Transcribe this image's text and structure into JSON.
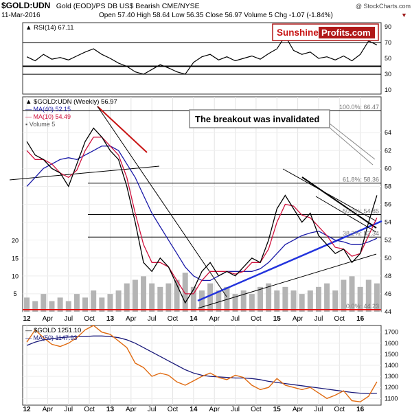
{
  "header": {
    "symbol": "$GOLD:UDN",
    "description": "Gold (EOD)/PS DB US$ Bearish  CME/NYSE",
    "watermark": "@ StockCharts.com",
    "date": "11-Mar-2016",
    "quote_line": "Open 57.40   High 58.64   Low 56.35   Close 56.97   Volume 5   Chg -1.07 (-1.84%)",
    "change_marker": "▼"
  },
  "branding": {
    "part1": "Sunshine",
    "part2": "Profits.com"
  },
  "colors": {
    "price": "#000000",
    "ma40": "#1a1aa8",
    "ma10": "#d0103c",
    "volume": "#b4b4b4",
    "gold": "#e06a10",
    "ma50": "#1a1a7a",
    "support": "#2233dd",
    "resistance_short": "#c81414"
  },
  "annotation": {
    "text": "The breakout was invalidated"
  },
  "chart_data": [
    {
      "type": "line",
      "title": "RSI(14) 67.11",
      "legend_label": "RSI(14) 67.11",
      "ylim": [
        5,
        95
      ],
      "ticks": [
        "90",
        "70",
        "50",
        "30",
        "10"
      ],
      "levels": [
        70,
        40,
        30
      ],
      "x": [
        2012.0,
        2012.1,
        2012.2,
        2012.3,
        2012.4,
        2012.5,
        2012.6,
        2012.7,
        2012.8,
        2012.9,
        2013.0,
        2013.1,
        2013.2,
        2013.3,
        2013.4,
        2013.5,
        2013.6,
        2013.7,
        2013.8,
        2013.9,
        2014.0,
        2014.1,
        2014.2,
        2014.3,
        2014.4,
        2014.5,
        2014.6,
        2014.7,
        2014.8,
        2014.9,
        2015.0,
        2015.1,
        2015.2,
        2015.3,
        2015.4,
        2015.5,
        2015.6,
        2015.7,
        2015.8,
        2015.9,
        2016.0,
        2016.1,
        2016.2
      ],
      "values": [
        52,
        47,
        55,
        49,
        51,
        48,
        53,
        58,
        62,
        55,
        50,
        44,
        40,
        33,
        30,
        36,
        42,
        38,
        33,
        30,
        45,
        52,
        55,
        48,
        52,
        47,
        50,
        53,
        49,
        56,
        62,
        78,
        60,
        55,
        58,
        50,
        52,
        48,
        53,
        47,
        55,
        72,
        67
      ]
    },
    {
      "type": "line",
      "title": "$GOLD:UDN (Weekly) 56.97",
      "legend": [
        "$GOLD:UDN (Weekly) 56.97",
        "MA(40) 52.15",
        "MA(10) 54.49",
        "Volume 5"
      ],
      "ylim": [
        44,
        68
      ],
      "y_ticks": [
        "64",
        "62",
        "60",
        "58",
        "56",
        "54",
        "52",
        "50",
        "48",
        "46",
        "44"
      ],
      "volume_ticks": [
        "20",
        "15",
        "10",
        "5"
      ],
      "x_ticks": [
        "12",
        "Apr",
        "Jul",
        "Oct",
        "13",
        "Apr",
        "Jul",
        "Oct",
        "14",
        "Apr",
        "Jul",
        "Oct",
        "15",
        "Apr",
        "Jul",
        "Oct",
        "16"
      ],
      "x": [
        2012.0,
        2012.1,
        2012.2,
        2012.3,
        2012.4,
        2012.5,
        2012.6,
        2012.7,
        2012.8,
        2012.9,
        2013.0,
        2013.1,
        2013.2,
        2013.3,
        2013.4,
        2013.5,
        2013.6,
        2013.7,
        2013.8,
        2013.9,
        2014.0,
        2014.1,
        2014.2,
        2014.3,
        2014.4,
        2014.5,
        2014.6,
        2014.7,
        2014.8,
        2014.9,
        2015.0,
        2015.1,
        2015.2,
        2015.3,
        2015.4,
        2015.5,
        2015.6,
        2015.7,
        2015.8,
        2015.9,
        2016.0,
        2016.1,
        2016.2
      ],
      "series": [
        {
          "name": "$GOLD:UDN (Weekly) 56.97",
          "values": [
            63.0,
            61.5,
            61.0,
            60.0,
            59.5,
            58.0,
            60.5,
            63.0,
            64.5,
            63.5,
            62.0,
            61.0,
            58.0,
            54.0,
            49.5,
            48.5,
            50.0,
            49.0,
            47.0,
            45.0,
            46.5,
            48.5,
            49.5,
            48.0,
            48.5,
            48.0,
            49.0,
            50.0,
            49.5,
            52.0,
            55.5,
            57.0,
            55.5,
            54.0,
            55.0,
            52.5,
            51.5,
            50.5,
            51.0,
            49.5,
            50.5,
            54.0,
            57.0
          ]
        },
        {
          "name": "MA(40) 52.15",
          "values": [
            58.0,
            59.0,
            60.0,
            60.5,
            61.0,
            61.2,
            61.0,
            61.5,
            62.0,
            62.5,
            62.5,
            62.0,
            60.5,
            59.0,
            57.0,
            55.0,
            53.5,
            52.0,
            50.5,
            49.0,
            48.0,
            47.5,
            47.5,
            48.0,
            48.5,
            48.5,
            48.5,
            48.5,
            48.8,
            49.5,
            50.5,
            51.5,
            52.0,
            52.5,
            52.8,
            53.0,
            52.5,
            52.0,
            51.8,
            51.5,
            51.5,
            51.8,
            52.2
          ]
        },
        {
          "name": "MA(10) 54.49",
          "values": [
            62.0,
            61.0,
            61.0,
            60.5,
            59.5,
            59.0,
            59.8,
            62.0,
            63.5,
            63.5,
            62.5,
            61.5,
            59.0,
            55.0,
            51.5,
            49.5,
            49.5,
            49.0,
            47.5,
            46.0,
            46.0,
            47.5,
            48.5,
            48.5,
            48.5,
            48.2,
            48.5,
            49.5,
            49.5,
            51.0,
            54.0,
            56.0,
            55.8,
            54.8,
            54.5,
            53.5,
            52.5,
            51.2,
            51.0,
            50.2,
            50.5,
            52.5,
            54.5
          ]
        }
      ],
      "volume": [
        4,
        3,
        5,
        3,
        4,
        3,
        5,
        4,
        6,
        4,
        5,
        6,
        8,
        9,
        10,
        8,
        7,
        8,
        9,
        11,
        7,
        6,
        8,
        6,
        7,
        5,
        6,
        5,
        7,
        8,
        6,
        7,
        6,
        5,
        6,
        7,
        8,
        6,
        9,
        10,
        7,
        9,
        8
      ],
      "fib_labels": [
        {
          "pct": "100.0%",
          "value": "66.47",
          "level": 66.47
        },
        {
          "pct": "61.8%",
          "value": "58.36",
          "level": 58.36
        },
        {
          "pct": "50.0%",
          "value": "54.85",
          "level": 54.85
        },
        {
          "pct": "38.2%",
          "value": "52.34",
          "level": 52.34
        },
        {
          "pct": "0.0%",
          "value": "44.23",
          "level": 44.23
        }
      ]
    },
    {
      "type": "line",
      "title": "$GOLD 1251.10",
      "legend": [
        "$GOLD 1251.10",
        "MA(50) 1147.93"
      ],
      "ylim": [
        1040,
        1760
      ],
      "ticks": [
        "1700",
        "1600",
        "1500",
        "1400",
        "1300",
        "1200",
        "1100"
      ],
      "x_ticks": [
        "12",
        "Apr",
        "Jul",
        "Oct",
        "13",
        "Apr",
        "Jul",
        "Oct",
        "14",
        "Apr",
        "Jul",
        "Oct",
        "15",
        "Apr",
        "Jul",
        "Oct",
        "16"
      ],
      "x": [
        2012.0,
        2012.1,
        2012.2,
        2012.3,
        2012.4,
        2012.5,
        2012.6,
        2012.7,
        2012.8,
        2012.9,
        2013.0,
        2013.1,
        2013.2,
        2013.3,
        2013.4,
        2013.5,
        2013.6,
        2013.7,
        2013.8,
        2013.9,
        2014.0,
        2014.1,
        2014.2,
        2014.3,
        2014.4,
        2014.5,
        2014.6,
        2014.7,
        2014.8,
        2014.9,
        2015.0,
        2015.1,
        2015.2,
        2015.3,
        2015.4,
        2015.5,
        2015.6,
        2015.7,
        2015.8,
        2015.9,
        2016.0,
        2016.1,
        2016.2
      ],
      "series": [
        {
          "name": "$GOLD 1251.10",
          "values": [
            1610,
            1720,
            1650,
            1590,
            1570,
            1600,
            1650,
            1720,
            1760,
            1700,
            1680,
            1620,
            1560,
            1420,
            1380,
            1300,
            1330,
            1310,
            1250,
            1220,
            1260,
            1300,
            1330,
            1290,
            1270,
            1310,
            1290,
            1220,
            1180,
            1200,
            1280,
            1220,
            1200,
            1180,
            1200,
            1150,
            1100,
            1130,
            1170,
            1080,
            1070,
            1120,
            1251
          ]
        },
        {
          "name": "MA(50) 1147.93",
          "values": [
            1580,
            1610,
            1630,
            1640,
            1650,
            1655,
            1660,
            1660,
            1665,
            1665,
            1660,
            1650,
            1630,
            1600,
            1560,
            1520,
            1480,
            1440,
            1400,
            1360,
            1330,
            1310,
            1300,
            1295,
            1290,
            1285,
            1285,
            1280,
            1270,
            1255,
            1245,
            1235,
            1225,
            1215,
            1205,
            1195,
            1185,
            1175,
            1165,
            1155,
            1148,
            1145,
            1148
          ]
        }
      ]
    }
  ]
}
